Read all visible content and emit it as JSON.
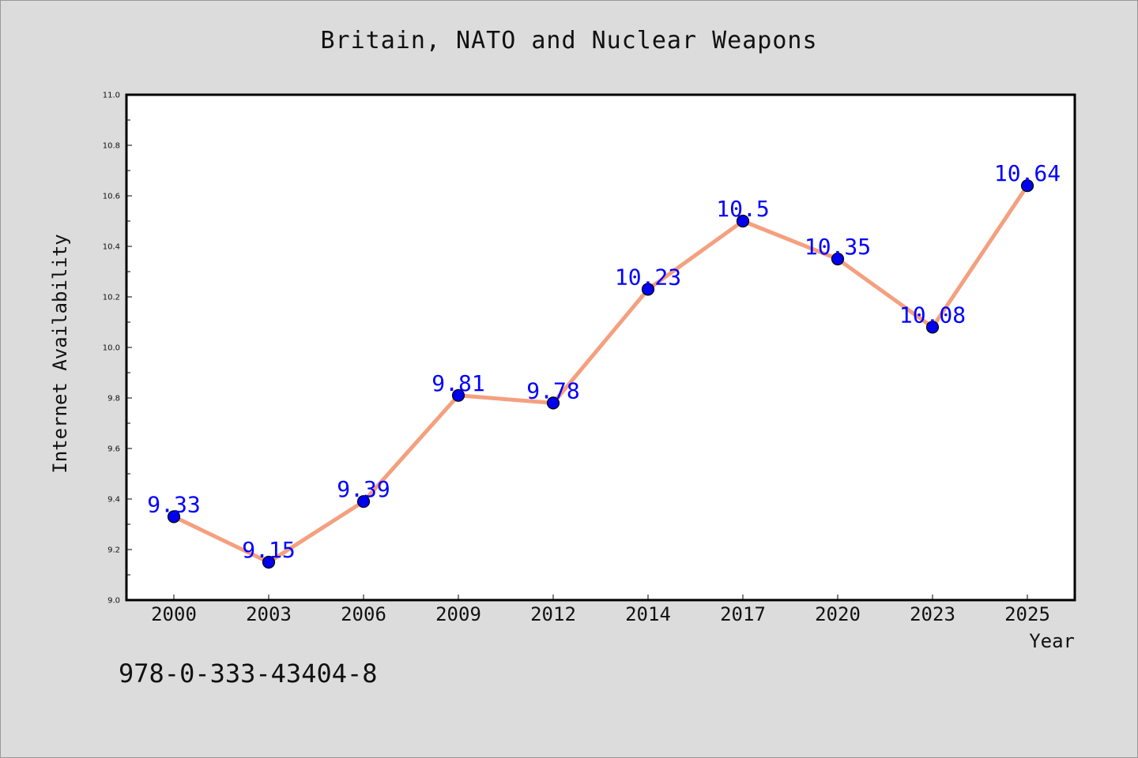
{
  "chart_data": {
    "type": "line",
    "title": "Britain, NATO and Nuclear Weapons",
    "xlabel": "Year",
    "ylabel": "Internet Availability",
    "categories": [
      "2000",
      "2003",
      "2006",
      "2009",
      "2012",
      "2014",
      "2017",
      "2020",
      "2023",
      "2025"
    ],
    "values": [
      9.33,
      9.15,
      9.39,
      9.81,
      9.78,
      10.23,
      10.5,
      10.35,
      10.08,
      10.64
    ],
    "value_labels": [
      "9.33",
      "9.15",
      "9.39",
      "9.81",
      "9.78",
      "10.23",
      "10.5",
      "10.35",
      "10.08",
      "10.64"
    ],
    "ylim": [
      9.0,
      11.0
    ],
    "yticks": [
      "9.0",
      "9.2",
      "9.4",
      "9.6",
      "9.8",
      "10.0",
      "10.2",
      "10.4",
      "10.6",
      "10.8",
      "11.0"
    ],
    "grid": false,
    "legend": "none",
    "colors": {
      "line": "#f4a07f",
      "marker": "#0000ee",
      "label": "#0000ff",
      "background": "#dcdcdc",
      "plot_background": "#ffffff"
    }
  },
  "footer": {
    "isbn": "978-0-333-43404-8"
  }
}
